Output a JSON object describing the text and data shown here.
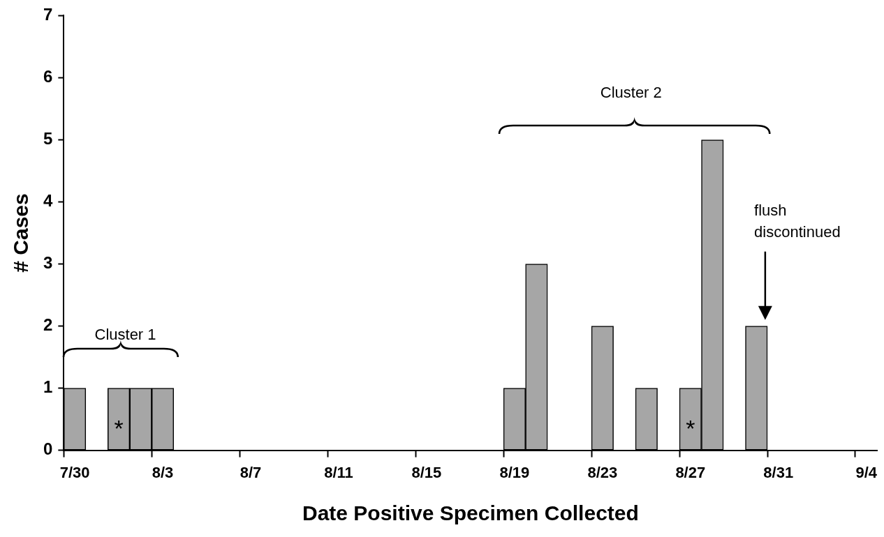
{
  "chart_data": {
    "type": "bar",
    "xlabel": "Date Positive Specimen Collected",
    "ylabel": "# Cases",
    "categories": [
      "7/30",
      null,
      null,
      null,
      "8/3",
      null,
      null,
      null,
      "8/7",
      null,
      null,
      null,
      "8/11",
      null,
      null,
      null,
      "8/15",
      null,
      null,
      null,
      "8/19",
      null,
      null,
      null,
      "8/23",
      null,
      null,
      null,
      "8/27",
      null,
      null,
      null,
      "8/31",
      null,
      null,
      null,
      "9/4"
    ],
    "values": [
      1,
      0,
      1,
      1,
      1,
      0,
      0,
      0,
      0,
      0,
      0,
      0,
      0,
      0,
      0,
      0,
      0,
      0,
      0,
      0,
      1,
      3,
      0,
      0,
      2,
      0,
      1,
      0,
      1,
      5,
      0,
      2,
      0,
      0,
      0,
      0,
      0
    ],
    "color": "#a6a6a6",
    "ylim": [
      0,
      7
    ],
    "yticks": [
      0,
      1,
      2,
      3,
      4,
      5,
      6,
      7
    ],
    "grid": false,
    "legend": false,
    "annotations": [
      "Cluster 1",
      "Cluster 2",
      "flush discontinued",
      "*",
      "*"
    ]
  }
}
